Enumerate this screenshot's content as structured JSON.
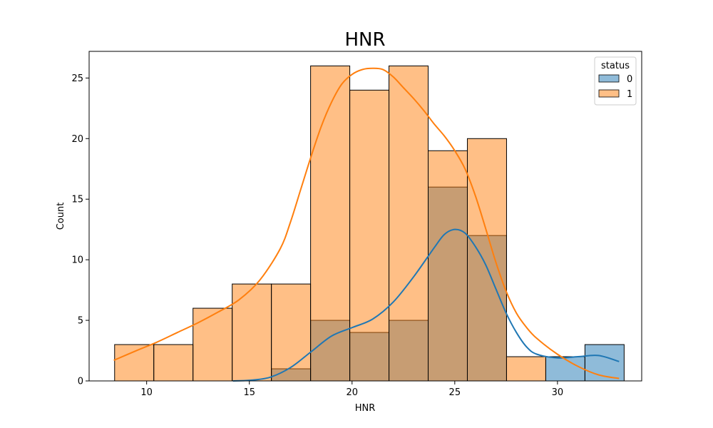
{
  "chart_data": {
    "type": "bar",
    "title": "HNR",
    "xlabel": "HNR",
    "ylabel": "Count",
    "xlim": [
      7.2,
      34.1
    ],
    "ylim": [
      0,
      27.2
    ],
    "xticks": [
      10,
      15,
      20,
      25,
      30
    ],
    "yticks": [
      0,
      5,
      10,
      15,
      20,
      25
    ],
    "bin_edges": [
      8.441,
      10.349,
      12.257,
      14.165,
      16.073,
      17.981,
      19.889,
      21.797,
      23.705,
      25.613,
      27.521,
      29.429,
      31.337,
      33.245
    ],
    "legend": {
      "title": "status",
      "position": "top-right"
    },
    "series": [
      {
        "name": "0",
        "color": "#1f77b4",
        "fill": "#1f77b4",
        "values": [
          0,
          0,
          0,
          0,
          1,
          5,
          4,
          5,
          16,
          12,
          0,
          2,
          3
        ],
        "kde": {
          "x": [
            14.2,
            15.0,
            16.0,
            17.0,
            18.0,
            19.0,
            20.0,
            21.0,
            22.0,
            23.0,
            24.0,
            24.5,
            25.0,
            25.5,
            26.0,
            26.5,
            27.0,
            27.5,
            28.0,
            28.5,
            29.0,
            30.0,
            31.0,
            32.0,
            33.0
          ],
          "y": [
            0.0,
            0.05,
            0.3,
            1.1,
            2.4,
            3.7,
            4.4,
            5.1,
            6.5,
            8.6,
            11.0,
            12.1,
            12.5,
            12.2,
            11.1,
            9.6,
            7.6,
            5.6,
            4.0,
            2.8,
            2.2,
            1.9,
            2.0,
            2.1,
            1.6
          ]
        }
      },
      {
        "name": "1",
        "color": "#ff7f0e",
        "fill": "#ffbb88",
        "values": [
          3,
          3,
          6,
          8,
          8,
          26,
          24,
          26,
          19,
          20,
          2,
          0,
          0
        ],
        "kde": {
          "x": [
            8.4,
            9.5,
            10.5,
            11.5,
            12.5,
            13.5,
            14.5,
            15.5,
            16.5,
            17.0,
            17.5,
            18.0,
            18.5,
            19.0,
            19.5,
            20.0,
            20.5,
            21.0,
            21.5,
            22.0,
            22.5,
            23.0,
            23.5,
            24.0,
            24.5,
            25.0,
            25.5,
            26.0,
            26.5,
            27.0,
            27.5,
            28.0,
            28.5,
            29.0,
            30.0,
            31.0,
            32.0,
            33.0
          ],
          "y": [
            1.7,
            2.5,
            3.2,
            4.0,
            4.8,
            5.7,
            6.7,
            8.3,
            10.9,
            13.1,
            15.8,
            18.5,
            21.0,
            23.0,
            24.5,
            25.3,
            25.7,
            25.8,
            25.7,
            25.1,
            24.2,
            23.3,
            22.3,
            21.2,
            20.2,
            19.0,
            17.5,
            15.3,
            12.6,
            9.8,
            7.4,
            5.6,
            4.4,
            3.5,
            2.2,
            1.2,
            0.5,
            0.2
          ]
        }
      }
    ]
  }
}
